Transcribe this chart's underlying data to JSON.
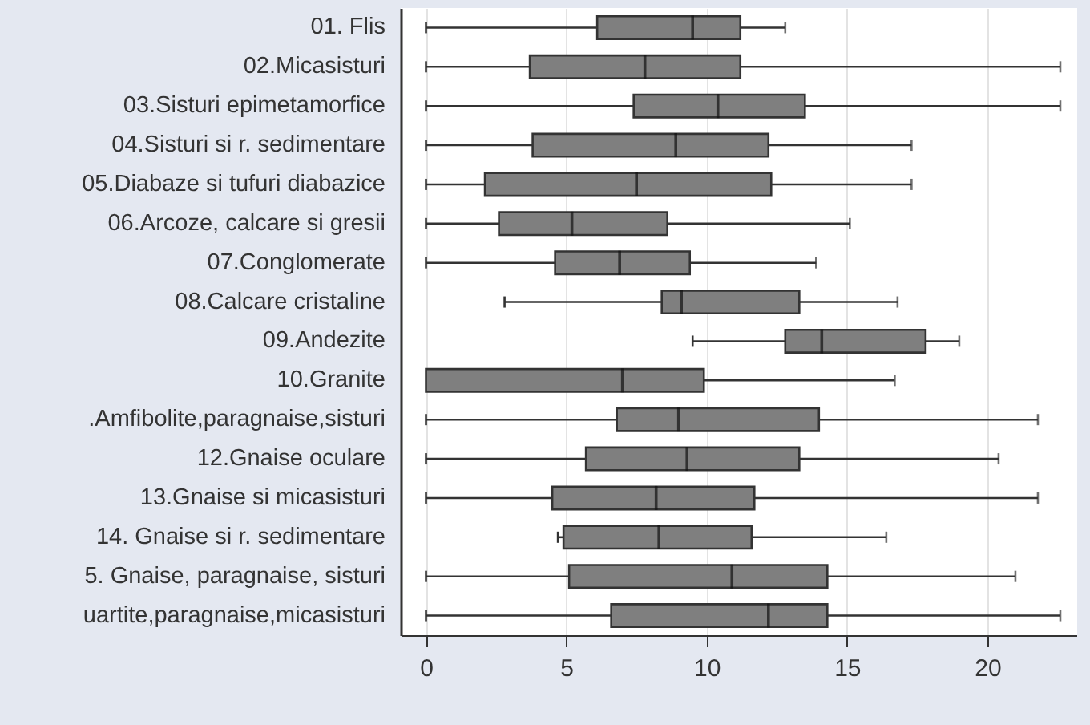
{
  "chart_data": {
    "type": "box",
    "orientation": "horizontal",
    "categories": [
      "01. Flis",
      "02.Micasisturi",
      "03.Sisturi epimetamorfice",
      "04.Sisturi si r. sedimentare",
      "05.Diabaze si tufuri diabazice",
      "06.Arcoze, calcare si gresii",
      "07.Conglomerate",
      "08.Calcare cristaline",
      "09.Andezite",
      "10.Granite",
      ".Amfibolite,paragnaise,sisturi",
      "12.Gnaise oculare",
      "13.Gnaise si micasisturi",
      "14. Gnaise si r. sedimentare",
      "5. Gnaise, paragnaise, sisturi",
      "uartite,paragnaise,micasisturi"
    ],
    "series": [
      {
        "color": "#7f7f7f",
        "boxes": [
          {
            "low": 0,
            "q1": 6.1,
            "median": 9.5,
            "q3": 11.2,
            "high": 12.8
          },
          {
            "low": 0,
            "q1": 3.7,
            "median": 7.8,
            "q3": 11.2,
            "high": 22.6
          },
          {
            "low": 0,
            "q1": 7.4,
            "median": 10.4,
            "q3": 13.5,
            "high": 22.6
          },
          {
            "low": 0,
            "q1": 3.8,
            "median": 8.9,
            "q3": 12.2,
            "high": 17.3
          },
          {
            "low": 0,
            "q1": 2.1,
            "median": 7.5,
            "q3": 12.3,
            "high": 17.3
          },
          {
            "low": 0,
            "q1": 2.6,
            "median": 5.2,
            "q3": 8.6,
            "high": 15.1
          },
          {
            "low": 0,
            "q1": 4.6,
            "median": 6.9,
            "q3": 9.4,
            "high": 13.9
          },
          {
            "low": 2.8,
            "q1": 8.4,
            "median": 9.1,
            "q3": 13.3,
            "high": 16.8
          },
          {
            "low": 9.5,
            "q1": 12.8,
            "median": 14.1,
            "q3": 17.8,
            "high": 19.0
          },
          {
            "low": 0,
            "q1": 0,
            "median": 7.0,
            "q3": 9.9,
            "high": 16.7
          },
          {
            "low": 0,
            "q1": 6.8,
            "median": 9.0,
            "q3": 14.0,
            "high": 21.8
          },
          {
            "low": 0,
            "q1": 5.7,
            "median": 9.3,
            "q3": 13.3,
            "high": 20.4
          },
          {
            "low": 0,
            "q1": 4.5,
            "median": 8.2,
            "q3": 11.7,
            "high": 21.8
          },
          {
            "low": 4.7,
            "q1": 4.9,
            "median": 8.3,
            "q3": 11.6,
            "high": 16.4
          },
          {
            "low": 0,
            "q1": 5.1,
            "median": 10.9,
            "q3": 14.3,
            "high": 21.0
          },
          {
            "low": 0,
            "q1": 6.6,
            "median": 12.2,
            "q3": 14.3,
            "high": 22.6
          }
        ]
      }
    ],
    "xlim": [
      -0.9,
      23.2
    ],
    "xticks": [
      0,
      5,
      10,
      15,
      20
    ],
    "grid": "x"
  }
}
